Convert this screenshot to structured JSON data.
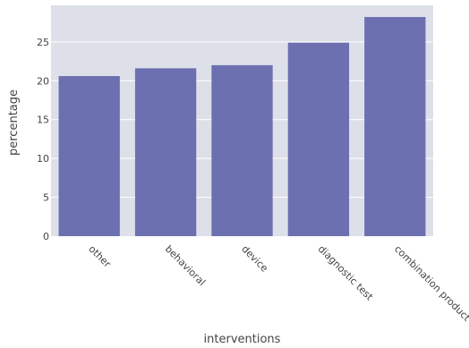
{
  "chart_data": {
    "type": "bar",
    "categories": [
      "other",
      "behavioral",
      "device",
      "diagnostic test",
      "combination product"
    ],
    "values": [
      20.6,
      21.6,
      22.0,
      24.9,
      28.2
    ],
    "xlabel": "interventions",
    "ylabel": "percentage",
    "yticks": [
      0,
      5,
      10,
      15,
      20,
      25
    ],
    "ylim": [
      0,
      29.7
    ],
    "grid": true,
    "colors": {
      "bar": "#6c6fb0",
      "plot_bg": "#dde0e8",
      "grid": "#ffffff"
    }
  }
}
